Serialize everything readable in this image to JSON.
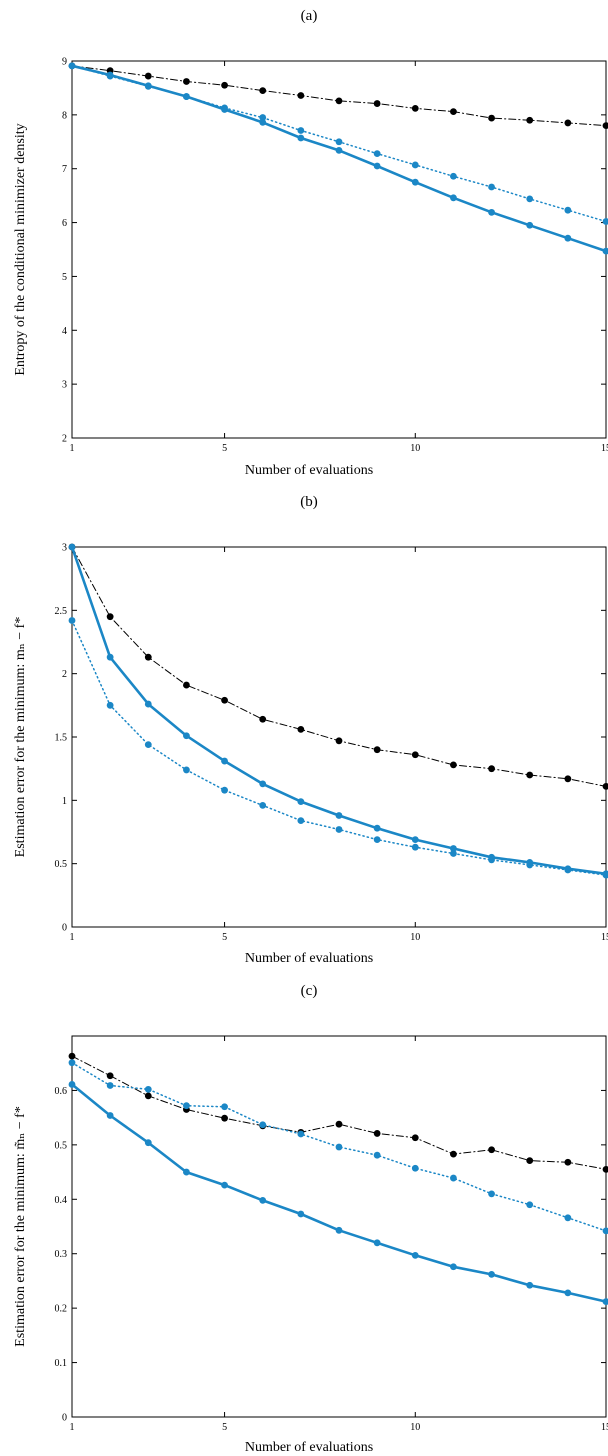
{
  "colors": {
    "black_series": "#000000",
    "blue_series": "#1b87c6",
    "axis": "#000000"
  },
  "charts": [
    {
      "panel_label": "(a)",
      "chart_data": {
        "type": "line",
        "xlabel": "Number of evaluations",
        "ylabel": "Entropy of the conditional minimizer density",
        "xlim": [
          1,
          15
        ],
        "ylim": [
          2,
          9
        ],
        "xticks": [
          1,
          5,
          10,
          15
        ],
        "yticks": [
          2,
          3,
          4,
          5,
          6,
          7,
          8,
          9
        ],
        "grid": false,
        "series": [
          {
            "style": "dashdot",
            "color": "#000000",
            "x": [
              1,
              2,
              3,
              4,
              5,
              6,
              7,
              8,
              9,
              10,
              11,
              12,
              13,
              14,
              15
            ],
            "y": [
              8.91,
              8.82,
              8.72,
              8.62,
              8.55,
              8.45,
              8.36,
              8.26,
              8.21,
              8.12,
              8.06,
              7.94,
              7.9,
              7.85,
              7.8
            ]
          },
          {
            "style": "dotted",
            "color": "#1b87c6",
            "x": [
              1,
              2,
              3,
              4,
              5,
              6,
              7,
              8,
              9,
              10,
              11,
              12,
              13,
              14,
              15
            ],
            "y": [
              8.91,
              8.72,
              8.53,
              8.34,
              8.13,
              7.95,
              7.71,
              7.5,
              7.28,
              7.07,
              6.86,
              6.66,
              6.44,
              6.23,
              6.02
            ]
          },
          {
            "style": "solid",
            "color": "#1b87c6",
            "x": [
              1,
              2,
              3,
              4,
              5,
              6,
              7,
              8,
              9,
              10,
              11,
              12,
              13,
              14,
              15
            ],
            "y": [
              8.91,
              8.74,
              8.54,
              8.34,
              8.1,
              7.86,
              7.57,
              7.34,
              7.05,
              6.75,
              6.46,
              6.19,
              5.95,
              5.71,
              5.47
            ]
          }
        ]
      }
    },
    {
      "panel_label": "(b)",
      "chart_data": {
        "type": "line",
        "xlabel": "Number of evaluations",
        "ylabel": "Estimation error for the minimum: mₙ − f*",
        "xlim": [
          1,
          15
        ],
        "ylim": [
          0,
          3
        ],
        "xticks": [
          1,
          5,
          10,
          15
        ],
        "yticks": [
          0,
          0.5,
          1,
          1.5,
          2,
          2.5,
          3
        ],
        "grid": false,
        "series": [
          {
            "style": "dashdot",
            "color": "#000000",
            "x": [
              1,
              2,
              3,
              4,
              5,
              6,
              7,
              8,
              9,
              10,
              11,
              12,
              13,
              14,
              15
            ],
            "y": [
              3.0,
              2.45,
              2.13,
              1.91,
              1.79,
              1.64,
              1.56,
              1.47,
              1.4,
              1.36,
              1.28,
              1.25,
              1.2,
              1.17,
              1.11
            ]
          },
          {
            "style": "dotted",
            "color": "#1b87c6",
            "x": [
              1,
              2,
              3,
              4,
              5,
              6,
              7,
              8,
              9,
              10,
              11,
              12,
              13,
              14,
              15
            ],
            "y": [
              2.42,
              1.75,
              1.44,
              1.24,
              1.08,
              0.96,
              0.84,
              0.77,
              0.69,
              0.63,
              0.58,
              0.53,
              0.49,
              0.45,
              0.41
            ]
          },
          {
            "style": "solid",
            "color": "#1b87c6",
            "x": [
              1,
              2,
              3,
              4,
              5,
              6,
              7,
              8,
              9,
              10,
              11,
              12,
              13,
              14,
              15
            ],
            "y": [
              3.0,
              2.13,
              1.76,
              1.51,
              1.31,
              1.13,
              0.99,
              0.88,
              0.78,
              0.69,
              0.62,
              0.55,
              0.51,
              0.46,
              0.42
            ]
          }
        ]
      }
    },
    {
      "panel_label": "(c)",
      "chart_data": {
        "type": "line",
        "xlabel": "Number of evaluations",
        "ylabel": "Estimation error for the minimum: m̃ₙ − f*",
        "xlim": [
          1,
          15
        ],
        "ylim": [
          0,
          0.7
        ],
        "xticks": [
          1,
          5,
          10,
          15
        ],
        "yticks": [
          0,
          0.1,
          0.2,
          0.3,
          0.4,
          0.5,
          0.6
        ],
        "grid": false,
        "series": [
          {
            "style": "dashdot",
            "color": "#000000",
            "x": [
              1,
              2,
              3,
              4,
              5,
              6,
              7,
              8,
              9,
              10,
              11,
              12,
              13,
              14,
              15
            ],
            "y": [
              0.663,
              0.627,
              0.59,
              0.565,
              0.549,
              0.535,
              0.523,
              0.538,
              0.521,
              0.513,
              0.483,
              0.491,
              0.471,
              0.468,
              0.455
            ]
          },
          {
            "style": "dotted",
            "color": "#1b87c6",
            "x": [
              1,
              2,
              3,
              4,
              5,
              6,
              7,
              8,
              9,
              10,
              11,
              12,
              13,
              14,
              15
            ],
            "y": [
              0.651,
              0.609,
              0.602,
              0.572,
              0.57,
              0.537,
              0.52,
              0.496,
              0.481,
              0.457,
              0.439,
              0.41,
              0.39,
              0.366,
              0.342
            ]
          },
          {
            "style": "solid",
            "color": "#1b87c6",
            "x": [
              1,
              2,
              3,
              4,
              5,
              6,
              7,
              8,
              9,
              10,
              11,
              12,
              13,
              14,
              15
            ],
            "y": [
              0.611,
              0.554,
              0.504,
              0.45,
              0.426,
              0.398,
              0.373,
              0.343,
              0.32,
              0.297,
              0.276,
              0.262,
              0.242,
              0.228,
              0.212
            ]
          }
        ]
      }
    }
  ]
}
